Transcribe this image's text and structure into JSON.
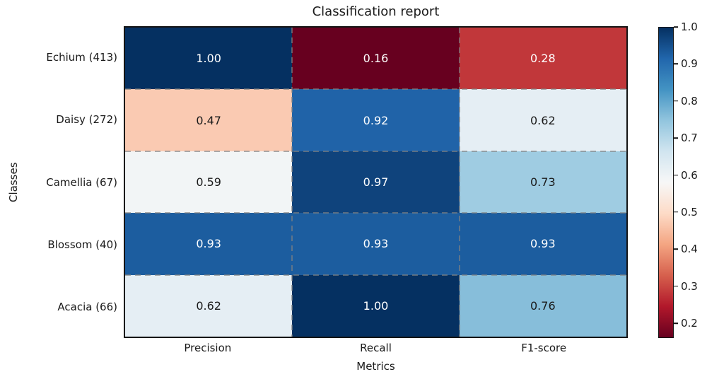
{
  "figure": {
    "background": "#ffffff",
    "text_color": "#1a1a1a"
  },
  "chart_data": {
    "type": "heatmap",
    "title": "Classification report",
    "xlabel": "Metrics",
    "ylabel": "Classes",
    "columns": [
      "Precision",
      "Recall",
      "F1-score"
    ],
    "rows": [
      "Echium (413)",
      "Daisy (272)",
      "Camellia (67)",
      "Blossom (40)",
      "Acacia (66)"
    ],
    "values": [
      [
        1.0,
        0.16,
        0.28
      ],
      [
        0.47,
        0.92,
        0.62
      ],
      [
        0.59,
        0.97,
        0.73
      ],
      [
        0.93,
        0.93,
        0.93
      ],
      [
        0.62,
        1.0,
        0.76
      ]
    ],
    "value_decimals": 2,
    "colormap": "RdBu",
    "vmin": 0.16,
    "vmax": 1.0,
    "cell_colors": [
      [
        "#053061",
        "#67001f",
        "#c1373a"
      ],
      [
        "#facab2",
        "#2063a8",
        "#e5eef4"
      ],
      [
        "#f2f5f6",
        "#0f437c",
        "#9fcce2"
      ],
      [
        "#1c5d9f",
        "#1c5d9f",
        "#1c5d9f"
      ],
      [
        "#e5eef4",
        "#053061",
        "#87beda"
      ]
    ],
    "cell_text_colors": [
      [
        "#ffffff",
        "#ffffff",
        "#ffffff"
      ],
      [
        "#1a1a1a",
        "#ffffff",
        "#1a1a1a"
      ],
      [
        "#1a1a1a",
        "#ffffff",
        "#1a1a1a"
      ],
      [
        "#ffffff",
        "#ffffff",
        "#ffffff"
      ],
      [
        "#1a1a1a",
        "#ffffff",
        "#1a1a1a"
      ]
    ],
    "gridline": {
      "style": "dashed",
      "color": "#828282"
    },
    "border_color": "#141414",
    "legend_position": "right",
    "colorbar": {
      "ticks": [
        1.0,
        0.9,
        0.8,
        0.7,
        0.6,
        0.5,
        0.4,
        0.3,
        0.2
      ],
      "tick_labels": [
        "1.0",
        "0.9",
        "0.8",
        "0.7",
        "0.6",
        "0.5",
        "0.4",
        "0.3",
        "0.2"
      ],
      "gradient_stops_top_to_bottom": [
        "#053061",
        "#2166ac",
        "#4393c3",
        "#92c5de",
        "#d1e5f0",
        "#f7f7f7",
        "#fddbc7",
        "#f4a582",
        "#d6604d",
        "#b2182b",
        "#67001f"
      ]
    }
  }
}
